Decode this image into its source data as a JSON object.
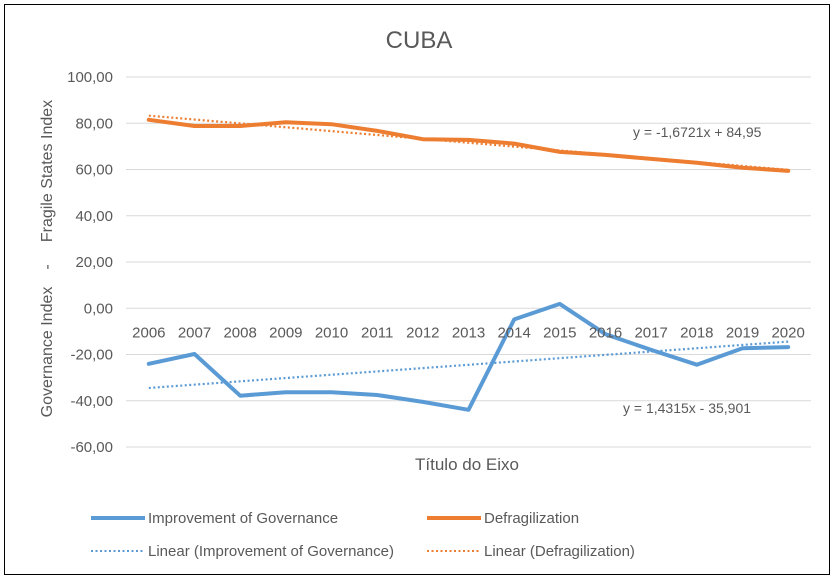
{
  "chart_data": {
    "type": "line",
    "title": "CUBA",
    "xlabel": "Título do Eixo",
    "ylabel_parts": [
      "Governance Index",
      "-",
      "Fragile States Index"
    ],
    "categories": [
      "2006",
      "2007",
      "2008",
      "2009",
      "2010",
      "2011",
      "2012",
      "2013",
      "2014",
      "2015",
      "2016",
      "2017",
      "2018",
      "2019",
      "2020"
    ],
    "ylim": [
      -60,
      100
    ],
    "yticks": [
      -60,
      -40,
      -20,
      0,
      20,
      40,
      60,
      80,
      100
    ],
    "ytick_labels": [
      "-60,00",
      "-40,00",
      "-20,00",
      "0,00",
      "20,00",
      "40,00",
      "60,00",
      "80,00",
      "100,00"
    ],
    "grid": true,
    "legend_position": "bottom",
    "series": [
      {
        "name": "Improvement of Governance",
        "color": "#5b9bd5",
        "values": [
          -24.0,
          -19.8,
          -37.8,
          -36.3,
          -36.3,
          -37.5,
          -40.5,
          -43.9,
          -4.8,
          1.9,
          -11.2,
          -18.0,
          -24.4,
          -17.3,
          -16.8
        ]
      },
      {
        "name": "Defragilization",
        "color": "#ed7d31",
        "values": [
          81.5,
          78.8,
          78.8,
          80.4,
          79.6,
          76.7,
          73.1,
          72.8,
          71.2,
          67.6,
          66.3,
          64.6,
          62.9,
          60.8,
          59.4
        ]
      }
    ],
    "trendlines": [
      {
        "name": "Linear (Improvement of Governance)",
        "color": "#5b9bd5",
        "slope": 1.4315,
        "intercept": -35.901,
        "equation": "y = 1,4315x - 35,901"
      },
      {
        "name": "Linear (Defragilization)",
        "color": "#ed7d31",
        "slope": -1.6721,
        "intercept": 84.95,
        "equation": "y = -1,6721x + 84,95"
      }
    ]
  }
}
